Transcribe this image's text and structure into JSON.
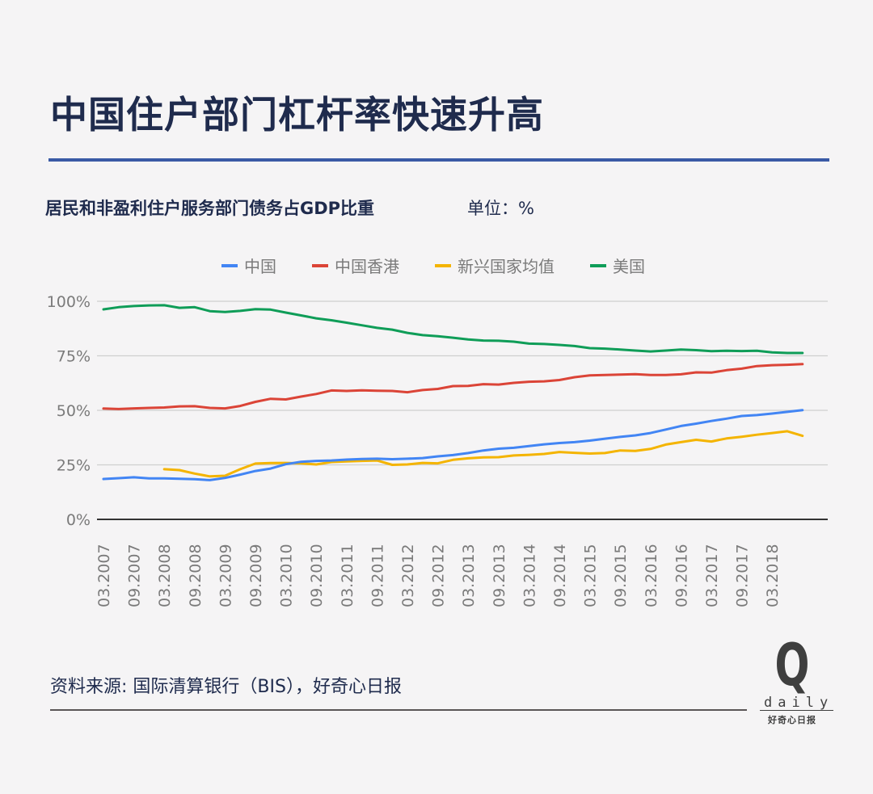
{
  "header": {
    "title": "中国住户部门杠杆率快速升高",
    "subtitle": "居民和非盈利住户服务部门债务占GDP比重",
    "unit": "单位：%"
  },
  "legend": [
    {
      "label": "中国",
      "color": "#4285f4"
    },
    {
      "label": "中国香港",
      "color": "#db4437"
    },
    {
      "label": "新兴国家均值",
      "color": "#f4b400"
    },
    {
      "label": "美国",
      "color": "#0f9d58"
    }
  ],
  "footer": {
    "source": "资料来源: 国际清算银行（BIS），好奇心日报",
    "logo_letter": "Q",
    "logo_word": "daily",
    "logo_cn": "好奇心日报"
  },
  "chart_data": {
    "type": "line",
    "title": "中国住户部门杠杆率快速升高",
    "subtitle": "居民和非盈利住户服务部门债务占GDP比重 单位：%",
    "xlabel": "",
    "ylabel": "%",
    "ylim": [
      0,
      100
    ],
    "yticks": [
      "0%",
      "25%",
      "50%",
      "75%",
      "100%"
    ],
    "grid": true,
    "legend_position": "top",
    "x_tick_labels": [
      "03.2007",
      "09.2007",
      "03.2008",
      "09.2008",
      "03.2009",
      "09.2009",
      "03.2010",
      "09.2010",
      "03.2011",
      "09.2011",
      "03.2012",
      "09.2012",
      "03.2013",
      "09.2013",
      "03.2014",
      "09.2014",
      "03.2015",
      "09.2015",
      "03.2016",
      "09.2016",
      "03.2017",
      "09.2017",
      "03.2018"
    ],
    "x": [
      "03.2007",
      "06.2007",
      "09.2007",
      "12.2007",
      "03.2008",
      "06.2008",
      "09.2008",
      "12.2008",
      "03.2009",
      "06.2009",
      "09.2009",
      "12.2009",
      "03.2010",
      "06.2010",
      "09.2010",
      "12.2010",
      "03.2011",
      "06.2011",
      "09.2011",
      "12.2011",
      "03.2012",
      "06.2012",
      "09.2012",
      "12.2012",
      "03.2013",
      "06.2013",
      "09.2013",
      "12.2013",
      "03.2014",
      "06.2014",
      "09.2014",
      "12.2014",
      "03.2015",
      "06.2015",
      "09.2015",
      "12.2015",
      "03.2016",
      "06.2016",
      "09.2016",
      "12.2016",
      "03.2017",
      "06.2017",
      "09.2017",
      "12.2017",
      "03.2018",
      "06.2018",
      "09.2018"
    ],
    "series": [
      {
        "name": "中国",
        "color": "#4285f4",
        "values": [
          18.5,
          18.9,
          19.3,
          18.8,
          18.8,
          18.6,
          18.4,
          18.0,
          19.0,
          20.5,
          22.2,
          23.3,
          25.3,
          26.4,
          26.8,
          27.0,
          27.4,
          27.7,
          27.8,
          27.6,
          27.8,
          28.1,
          28.9,
          29.5,
          30.4,
          31.6,
          32.4,
          32.8,
          33.6,
          34.4,
          35.0,
          35.4,
          36.1,
          37.0,
          37.8,
          38.5,
          39.6,
          41.2,
          42.8,
          43.9,
          45.1,
          46.2,
          47.4,
          47.8,
          48.5,
          49.3,
          50.1
        ]
      },
      {
        "name": "中国香港",
        "color": "#db4437",
        "values": [
          50.8,
          50.6,
          50.9,
          51.1,
          51.3,
          51.8,
          51.9,
          51.1,
          50.9,
          52.0,
          53.9,
          55.3,
          55.0,
          56.3,
          57.5,
          59.1,
          58.9,
          59.2,
          59.0,
          58.9,
          58.3,
          59.3,
          59.8,
          61.1,
          61.2,
          62.0,
          61.8,
          62.6,
          63.1,
          63.3,
          63.9,
          65.2,
          66.0,
          66.2,
          66.4,
          66.6,
          66.2,
          66.2,
          66.5,
          67.4,
          67.3,
          68.4,
          69.1,
          70.3,
          70.7,
          70.9,
          71.2
        ]
      },
      {
        "name": "新兴国家均值",
        "color": "#f4b400",
        "values": [
          null,
          null,
          null,
          null,
          23.0,
          22.6,
          21.0,
          19.7,
          20.0,
          23.0,
          25.6,
          25.8,
          25.9,
          25.7,
          25.2,
          26.3,
          26.6,
          26.8,
          27.0,
          25.0,
          25.2,
          25.9,
          25.7,
          27.3,
          28.0,
          28.4,
          28.5,
          29.3,
          29.6,
          30.0,
          30.9,
          30.5,
          30.2,
          30.4,
          31.6,
          31.4,
          32.3,
          34.3,
          35.4,
          36.5,
          35.7,
          37.1,
          37.9,
          38.8,
          39.6,
          40.4,
          38.3
        ]
      },
      {
        "name": "美国",
        "color": "#0f9d58",
        "values": [
          96.3,
          97.3,
          97.8,
          98.1,
          98.2,
          97.0,
          97.3,
          95.5,
          95.1,
          95.6,
          96.4,
          96.2,
          94.8,
          93.5,
          92.2,
          91.3,
          90.2,
          89.0,
          87.8,
          87.0,
          85.5,
          84.5,
          84.0,
          83.3,
          82.5,
          82.0,
          81.9,
          81.5,
          80.6,
          80.4,
          80.0,
          79.5,
          78.5,
          78.3,
          77.9,
          77.4,
          77.0,
          77.4,
          77.9,
          77.6,
          77.1,
          77.3,
          77.2,
          77.3,
          76.6,
          76.3,
          76.3
        ]
      }
    ]
  }
}
